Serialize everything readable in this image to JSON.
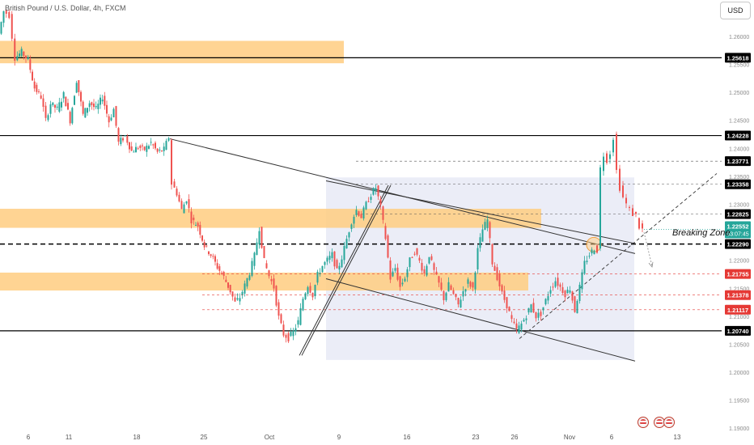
{
  "header": {
    "title": "British Pound / U.S. Dollar, 4h, FXCM",
    "currency_button": "USD"
  },
  "annotations": {
    "breaking_zone": "Breaking Zone"
  },
  "colors": {
    "up_candle": "#26a69a",
    "down_candle": "#ef5350",
    "zone_fill": "#ffcc80",
    "range_box": "#c5cae9",
    "red_label": "#e53935",
    "black_label": "#000000",
    "price_label": "#26a69a",
    "grid_text": "#8a8a8a",
    "trend_line": "#333333"
  },
  "chart_data": {
    "type": "candlestick",
    "symbol": "British Pound / U.S. Dollar",
    "timeframe": "4h",
    "source": "FXCM",
    "ylim": [
      1.187,
      1.2665
    ],
    "y_ticks": [
      "1.26500",
      "1.26000",
      "1.25500",
      "1.25000",
      "1.24500",
      "1.24000",
      "1.23500",
      "1.23000",
      "1.22500",
      "1.22000",
      "1.21500",
      "1.21000",
      "1.20500",
      "1.20000",
      "1.19500",
      "1.19000"
    ],
    "x_tick_labels": [
      "6",
      "11",
      "18",
      "25",
      "Oct",
      "9",
      "16",
      "23",
      "26",
      "Nov",
      "6",
      "13"
    ],
    "current_price": {
      "value": "1.22552",
      "countdown": "03:07:45"
    },
    "price_levels": [
      {
        "value": "1.25618",
        "kind": "solid",
        "label_style": "black"
      },
      {
        "value": "1.24228",
        "kind": "solid",
        "label_style": "black"
      },
      {
        "value": "1.23771",
        "kind": "dashed",
        "label_style": "black"
      },
      {
        "value": "1.23358",
        "kind": "dashed",
        "label_style": "black"
      },
      {
        "value": "1.22825",
        "kind": "dashed",
        "label_style": "black"
      },
      {
        "value": "1.22290",
        "kind": "bold-dashed",
        "label_style": "black"
      },
      {
        "value": "1.21755",
        "kind": "red-dashed",
        "label_style": "red"
      },
      {
        "value": "1.21378",
        "kind": "red-dashed",
        "label_style": "red"
      },
      {
        "value": "1.21117",
        "kind": "red-dashed",
        "label_style": "red"
      },
      {
        "value": "1.20740",
        "kind": "solid",
        "label_style": "black"
      }
    ],
    "zones": [
      {
        "low": 1.2552,
        "high": 1.2592
      },
      {
        "low": 1.2258,
        "high": 1.2292
      },
      {
        "low": 1.2146,
        "high": 1.2178
      }
    ],
    "price_path": [
      [
        0,
        1.2605
      ],
      [
        6,
        1.2645
      ],
      [
        13,
        1.2638
      ],
      [
        20,
        1.2562
      ],
      [
        28,
        1.2572
      ],
      [
        36,
        1.2558
      ],
      [
        44,
        1.2508
      ],
      [
        52,
        1.2492
      ],
      [
        58,
        1.245
      ],
      [
        64,
        1.248
      ],
      [
        72,
        1.247
      ],
      [
        80,
        1.2496
      ],
      [
        88,
        1.245
      ],
      [
        96,
        1.2522
      ],
      [
        104,
        1.246
      ],
      [
        112,
        1.2482
      ],
      [
        120,
        1.247
      ],
      [
        128,
        1.2492
      ],
      [
        136,
        1.2448
      ],
      [
        142,
        1.247
      ],
      [
        148,
        1.241
      ],
      [
        156,
        1.2422
      ],
      [
        164,
        1.2395
      ],
      [
        172,
        1.2402
      ],
      [
        180,
        1.2398
      ],
      [
        188,
        1.241
      ],
      [
        196,
        1.2393
      ],
      [
        204,
        1.2398
      ],
      [
        210,
        1.242
      ],
      [
        214,
        1.2337
      ],
      [
        220,
        1.232
      ],
      [
        226,
        1.229
      ],
      [
        232,
        1.231
      ],
      [
        238,
        1.2272
      ],
      [
        246,
        1.2262
      ],
      [
        254,
        1.2226
      ],
      [
        262,
        1.221
      ],
      [
        270,
        1.2188
      ],
      [
        278,
        1.217
      ],
      [
        286,
        1.2145
      ],
      [
        292,
        1.2124
      ],
      [
        298,
        1.2134
      ],
      [
        304,
        1.2155
      ],
      [
        310,
        1.2178
      ],
      [
        316,
        1.2208
      ],
      [
        322,
        1.2258
      ],
      [
        328,
        1.2198
      ],
      [
        334,
        1.2172
      ],
      [
        340,
        1.2152
      ],
      [
        346,
        1.2098
      ],
      [
        352,
        1.2068
      ],
      [
        358,
        1.2061
      ],
      [
        364,
        1.2072
      ],
      [
        370,
        1.209
      ],
      [
        376,
        1.2132
      ],
      [
        382,
        1.2156
      ],
      [
        388,
        1.2138
      ],
      [
        394,
        1.2174
      ],
      [
        400,
        1.219
      ],
      [
        406,
        1.22
      ],
      [
        412,
        1.221
      ],
      [
        418,
        1.218
      ],
      [
        424,
        1.2205
      ],
      [
        430,
        1.2238
      ],
      [
        436,
        1.227
      ],
      [
        442,
        1.229
      ],
      [
        448,
        1.2278
      ],
      [
        454,
        1.23
      ],
      [
        460,
        1.2318
      ],
      [
        466,
        1.233
      ],
      [
        472,
        1.2294
      ],
      [
        478,
        1.224
      ],
      [
        484,
        1.2168
      ],
      [
        490,
        1.2186
      ],
      [
        496,
        1.2152
      ],
      [
        502,
        1.217
      ],
      [
        508,
        1.22
      ],
      [
        514,
        1.2216
      ],
      [
        520,
        1.2198
      ],
      [
        526,
        1.2176
      ],
      [
        532,
        1.221
      ],
      [
        538,
        1.218
      ],
      [
        544,
        1.2158
      ],
      [
        550,
        1.2132
      ],
      [
        556,
        1.2156
      ],
      [
        562,
        1.2138
      ],
      [
        568,
        1.212
      ],
      [
        574,
        1.2145
      ],
      [
        580,
        1.2162
      ],
      [
        586,
        1.215
      ],
      [
        592,
        1.2218
      ],
      [
        598,
        1.2255
      ],
      [
        604,
        1.2272
      ],
      [
        610,
        1.2196
      ],
      [
        616,
        1.217
      ],
      [
        622,
        1.214
      ],
      [
        628,
        1.212
      ],
      [
        634,
        1.2092
      ],
      [
        640,
        1.2075
      ],
      [
        646,
        1.2086
      ],
      [
        652,
        1.2102
      ],
      [
        658,
        1.212
      ],
      [
        664,
        1.21
      ],
      [
        670,
        1.2105
      ],
      [
        676,
        1.2128
      ],
      [
        682,
        1.215
      ],
      [
        688,
        1.2164
      ],
      [
        694,
        1.2152
      ],
      [
        700,
        1.214
      ],
      [
        706,
        1.215
      ],
      [
        712,
        1.211
      ],
      [
        718,
        1.2152
      ],
      [
        724,
        1.2195
      ],
      [
        730,
        1.221
      ],
      [
        736,
        1.2222
      ],
      [
        740,
        1.2218
      ],
      [
        744,
        1.2364
      ],
      [
        748,
        1.2389
      ],
      [
        752,
        1.238
      ],
      [
        756,
        1.2393
      ],
      [
        760,
        1.242
      ],
      [
        764,
        1.236
      ],
      [
        768,
        1.233
      ],
      [
        772,
        1.2312
      ],
      [
        776,
        1.23
      ],
      [
        780,
        1.229
      ],
      [
        784,
        1.2283
      ],
      [
        788,
        1.228
      ],
      [
        792,
        1.226
      ],
      [
        796,
        1.2255
      ]
    ]
  }
}
